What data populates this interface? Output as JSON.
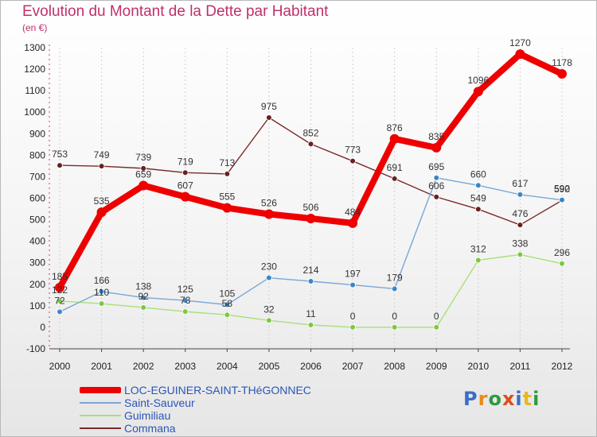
{
  "page": {
    "title": "Evolution du Montant de la Dette par Habitant",
    "unit_label": "(en €)",
    "logo": {
      "text": "Proxiti",
      "letters": [
        "P",
        "r",
        "o",
        "x",
        "i",
        "t",
        "i"
      ],
      "colors": [
        "#3a6ec8",
        "#e88a1a",
        "#2e9a3e",
        "#e04a1a",
        "#3a6ec8",
        "#e8b81a",
        "#2e9a3e"
      ]
    }
  },
  "chart_data": {
    "type": "line",
    "title": "Evolution du Montant de la Dette par Habitant",
    "ylabel": "(en €)",
    "xlabel": "",
    "x": [
      "2000",
      "2001",
      "2002",
      "2003",
      "2004",
      "2005",
      "2006",
      "2007",
      "2008",
      "2009",
      "2010",
      "2011",
      "2012"
    ],
    "ylim": [
      -100,
      1300
    ],
    "yticks": [
      "-100",
      "0",
      "100",
      "200",
      "300",
      "400",
      "500",
      "600",
      "700",
      "800",
      "900",
      "1000",
      "1100",
      "1200",
      "1300"
    ],
    "grid": "vertical",
    "legend_position": "bottom-left",
    "series": [
      {
        "name": "Commana",
        "color": "#7a2a2a",
        "dot": "#6a2020",
        "values": [
          753,
          749,
          739,
          719,
          713,
          975,
          852,
          773,
          691,
          606,
          549,
          476,
          590
        ],
        "labels": [
          "753",
          "749",
          "739",
          "719",
          "713",
          "975",
          "852",
          "773",
          "691",
          "606",
          "549",
          "476",
          "590"
        ]
      },
      {
        "name": "Guimiliau",
        "color": "#a8e07a",
        "dot": "#7cc83e",
        "values": [
          122,
          110,
          92,
          73,
          58,
          32,
          11,
          0,
          0,
          0,
          312,
          338,
          296
        ],
        "labels": [
          "122",
          "110",
          "92",
          "73",
          "58",
          "32",
          "11",
          "0",
          "0",
          "0",
          "312",
          "338",
          "296"
        ]
      },
      {
        "name": "Saint-Sauveur",
        "color": "#7aa6d6",
        "dot": "#3a86c8",
        "values": [
          72,
          166,
          138,
          125,
          105,
          230,
          214,
          197,
          179,
          695,
          660,
          617,
          592
        ],
        "labels": [
          "72",
          "166",
          "138",
          "125",
          "105",
          "230",
          "214",
          "197",
          "179",
          "695",
          "660",
          "617",
          "592"
        ]
      },
      {
        "name": "LOC-EGUINER-SAINT-THéGONNEC",
        "color": "#ee0000",
        "dot": "#ee0000",
        "values": [
          185,
          535,
          659,
          607,
          555,
          526,
          506,
          484,
          876,
          835,
          1096,
          1270,
          1178
        ],
        "labels": [
          "185",
          "535",
          "659",
          "607",
          "555",
          "526",
          "506",
          "484",
          "876",
          "835",
          "1096",
          "1270",
          "1178"
        ]
      }
    ],
    "legend": [
      "LOC-EGUINER-SAINT-THéGONNEC",
      "Saint-Sauveur",
      "Guimiliau",
      "Commana"
    ]
  }
}
